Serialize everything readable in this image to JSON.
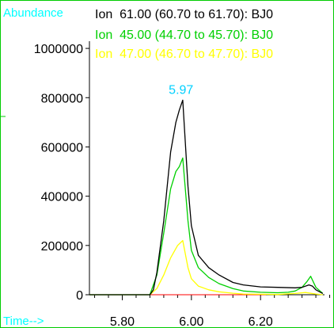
{
  "chart_data": {
    "type": "line",
    "ylabel": "Abundance",
    "xlabel": "Time-->",
    "xlim": [
      5.705,
      6.385
    ],
    "ylim": [
      0,
      1100000
    ],
    "x_ticks": [
      5.8,
      6.0,
      6.2
    ],
    "x_tick_labels": [
      "5.80",
      "6.00",
      "6.20"
    ],
    "y_ticks": [
      0,
      200000,
      400000,
      600000,
      800000,
      1000000
    ],
    "y_tick_labels": [
      "0",
      "200000",
      "400000",
      "600000",
      "800000",
      "1000000"
    ],
    "legend_placement": "top",
    "peak_label": {
      "text": "5.97",
      "x": 5.97,
      "y": 790000
    },
    "baseline_marker": {
      "x": [
        5.705,
        6.215
      ],
      "y": 0
    },
    "series": [
      {
        "name": "Ion  61.00 (60.70 to 61.70): BJ0",
        "x": [
          5.705,
          5.88,
          5.89,
          5.9,
          5.92,
          5.94,
          5.955,
          5.965,
          5.975,
          5.99,
          6.0,
          6.02,
          6.05,
          6.08,
          6.12,
          6.15,
          6.2,
          6.25,
          6.3,
          6.32,
          6.34,
          6.35,
          6.36,
          6.38
        ],
        "y": [
          0,
          0,
          20000,
          90000,
          300000,
          580000,
          700000,
          750000,
          790000,
          440000,
          280000,
          160000,
          110000,
          80000,
          50000,
          40000,
          32000,
          30000,
          28000,
          30000,
          40000,
          35000,
          20000,
          5000
        ],
        "color": "#000000"
      },
      {
        "name": "Ion  45.00 (44.70 to 45.70): BJ0",
        "x": [
          5.705,
          5.88,
          5.9,
          5.92,
          5.94,
          5.955,
          5.965,
          5.975,
          5.99,
          6.0,
          6.02,
          6.05,
          6.08,
          6.12,
          6.15,
          6.2,
          6.25,
          6.28,
          6.3,
          6.32,
          6.335,
          6.345,
          6.36,
          6.38
        ],
        "y": [
          0,
          0,
          80000,
          250000,
          430000,
          500000,
          520000,
          555000,
          300000,
          180000,
          110000,
          70000,
          45000,
          25000,
          15000,
          10000,
          8000,
          10000,
          15000,
          30000,
          55000,
          75000,
          30000,
          5000
        ],
        "color": "#00d000"
      },
      {
        "name": "Ion  47.00 (46.70 to 47.70): BJ0",
        "x": [
          5.705,
          5.88,
          5.9,
          5.92,
          5.94,
          5.96,
          5.975,
          5.99,
          6.0,
          6.02,
          6.05,
          6.08,
          6.12,
          6.15,
          6.2,
          6.25,
          6.3,
          6.33,
          6.36,
          6.38
        ],
        "y": [
          0,
          0,
          25000,
          80000,
          150000,
          200000,
          220000,
          110000,
          65000,
          35000,
          20000,
          12000,
          6000,
          3000,
          2000,
          1000,
          5000,
          9000,
          3000,
          0
        ],
        "color": "#ffff00"
      }
    ]
  },
  "colors": {
    "frame": "#00cc00",
    "axis_title": "#00ffff",
    "peak_label": "#00d0ff",
    "baseline": "#ff0000"
  }
}
